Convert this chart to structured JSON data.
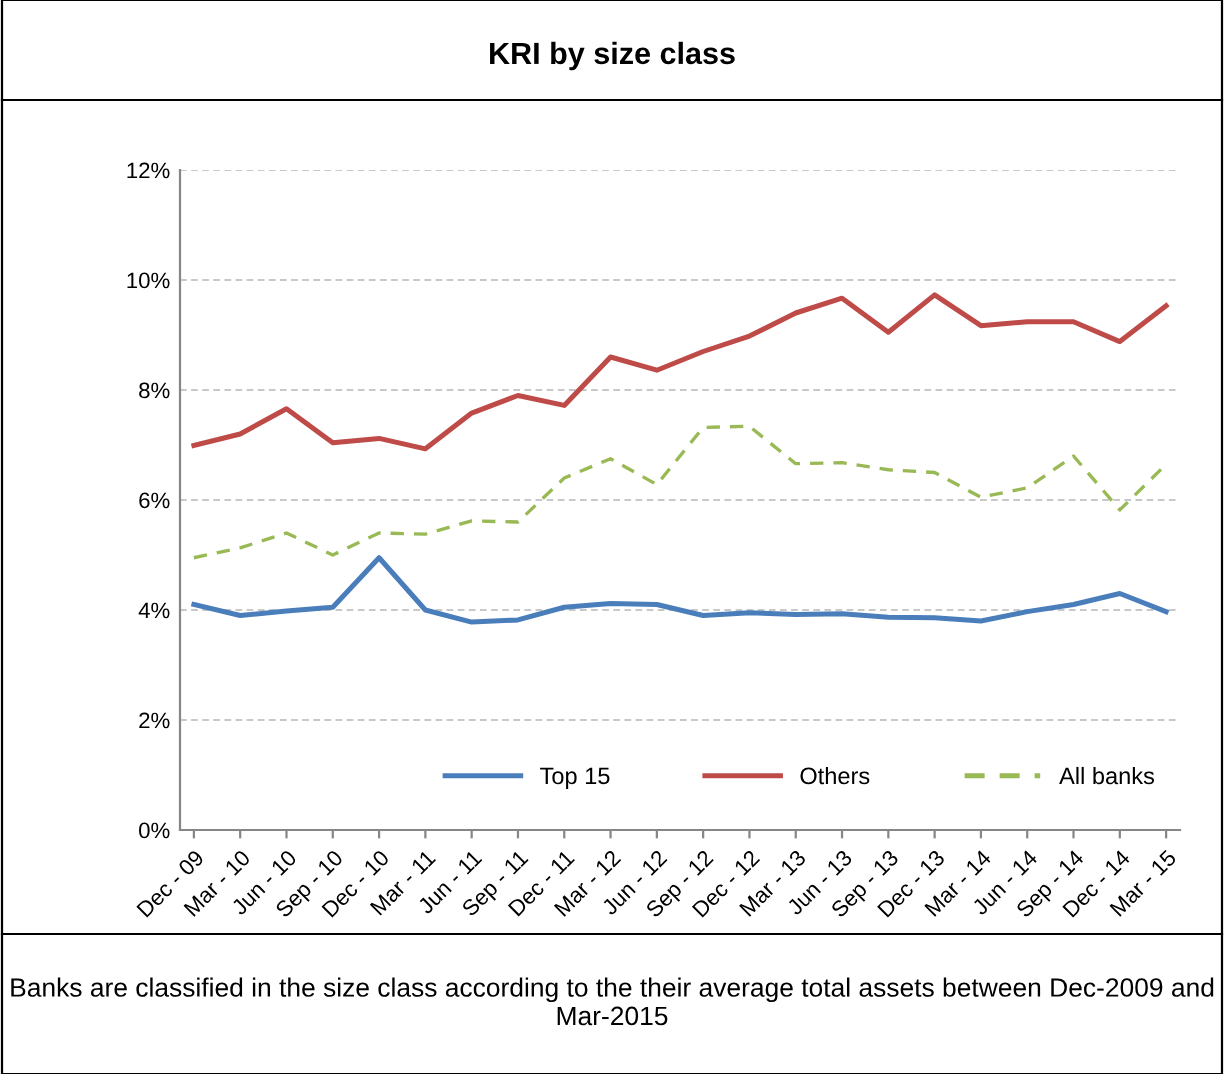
{
  "chart_data": {
    "type": "line",
    "title": "KRI by size class",
    "categories": [
      "Dec - 09",
      "Mar - 10",
      "Jun - 10",
      "Sep - 10",
      "Dec - 10",
      "Mar - 11",
      "Jun - 11",
      "Sep - 11",
      "Dec - 11",
      "Mar - 12",
      "Jun - 12",
      "Sep - 12",
      "Dec - 12",
      "Mar - 13",
      "Jun - 13",
      "Sep - 13",
      "Dec - 13",
      "Mar - 14",
      "Jun - 14",
      "Sep - 14",
      "Dec - 14",
      "Mar - 15"
    ],
    "series": [
      {
        "name": "Top 15",
        "color": "#4a7ebb",
        "line_style": "solid",
        "values": [
          4.1,
          3.9,
          3.98,
          4.05,
          4.95,
          4.0,
          3.78,
          3.82,
          4.05,
          4.12,
          4.1,
          3.9,
          3.95,
          3.92,
          3.93,
          3.87,
          3.86,
          3.8,
          3.97,
          4.1,
          4.3,
          3.97
        ]
      },
      {
        "name": "Others",
        "color": "#be4b48",
        "line_style": "solid",
        "values": [
          6.99,
          7.2,
          7.66,
          7.04,
          7.12,
          6.93,
          7.58,
          7.9,
          7.72,
          8.6,
          8.36,
          8.7,
          8.98,
          9.4,
          9.67,
          9.05,
          9.73,
          9.17,
          9.24,
          9.24,
          8.88,
          9.53
        ]
      },
      {
        "name": "All banks",
        "color": "#98b954",
        "line_style": "dashed",
        "values": [
          4.95,
          5.13,
          5.4,
          5.0,
          5.4,
          5.38,
          5.62,
          5.6,
          6.4,
          6.75,
          6.28,
          7.32,
          7.34,
          6.66,
          6.68,
          6.55,
          6.5,
          6.05,
          6.22,
          6.8,
          5.82,
          6.65
        ]
      }
    ],
    "ylim": [
      0,
      12
    ],
    "yticks": [
      {
        "value": 0,
        "label": "0%"
      },
      {
        "value": 2,
        "label": "2%"
      },
      {
        "value": 4,
        "label": "4%"
      },
      {
        "value": 6,
        "label": "6%"
      },
      {
        "value": 8,
        "label": "8%"
      },
      {
        "value": 10,
        "label": "10%"
      },
      {
        "value": 12,
        "label": "12%"
      }
    ],
    "grid": "y",
    "legend": "bottom",
    "marker": "none",
    "annotations": [
      "Banks are classified in the size class according to the their average total assets between Dec-2009 and Mar-2015"
    ]
  }
}
